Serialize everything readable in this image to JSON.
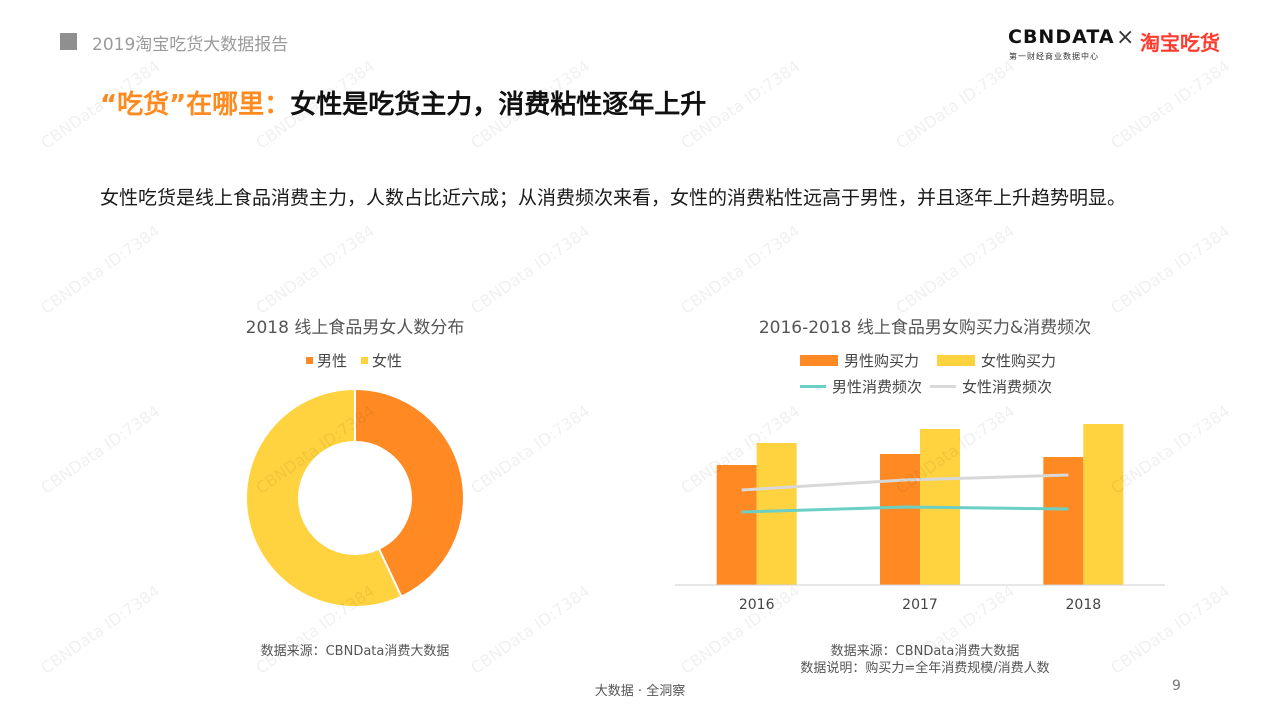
{
  "header": {
    "report_title": "2019淘宝吃货大数据报告",
    "logo_cbndata": "CBNDATA",
    "logo_cbndata_sub": "第一财经商业数据中心",
    "logo_times": "×",
    "logo_taobao": "淘宝吃货"
  },
  "headline": {
    "accent": "“吃货”在哪里：",
    "main": "女性是吃货主力，消费粘性逐年上升"
  },
  "intro_text": "女性吃货是线上食品消费主力，人数占比近六成；从消费频次来看，女性的消费粘性远高于男性，并且逐年上升趋势明显。",
  "chart_data": [
    {
      "type": "pie",
      "title": "2018 线上食品男女人数分布",
      "donut": true,
      "labels": [
        "男性",
        "女性"
      ],
      "values": [
        43,
        57
      ],
      "colors": [
        "#ff8a24",
        "#ffd23f"
      ],
      "legend_position": "top",
      "source": "数据来源：CBNData消费大数据"
    },
    {
      "type": "bar",
      "title": "2016-2018 线上食品男女购买力&消费频次",
      "categories": [
        "2016",
        "2017",
        "2018"
      ],
      "series": [
        {
          "name": "男性购买力",
          "kind": "bar",
          "color": "#ff8a24",
          "values": [
            120,
            131,
            128
          ]
        },
        {
          "name": "女性购买力",
          "kind": "bar",
          "color": "#ffd23f",
          "values": [
            142,
            156,
            161
          ]
        },
        {
          "name": "男性消费频次",
          "kind": "line",
          "color": "#6ccfc6",
          "values": [
            73,
            78,
            76
          ]
        },
        {
          "name": "女性消费频次",
          "kind": "line",
          "color": "#d8d8d8",
          "values": [
            95,
            105,
            110
          ]
        }
      ],
      "ylim": [
        0,
        170
      ],
      "grid": false,
      "legend_position": "top",
      "source": "数据来源：CBNData消费大数据",
      "note": "数据说明：购买力=全年消费规模/消费人数"
    }
  ],
  "footer": {
    "slogan": "大数据 · 全洞察",
    "page_number": "9"
  },
  "watermark_text": "CBNData ID:7384"
}
